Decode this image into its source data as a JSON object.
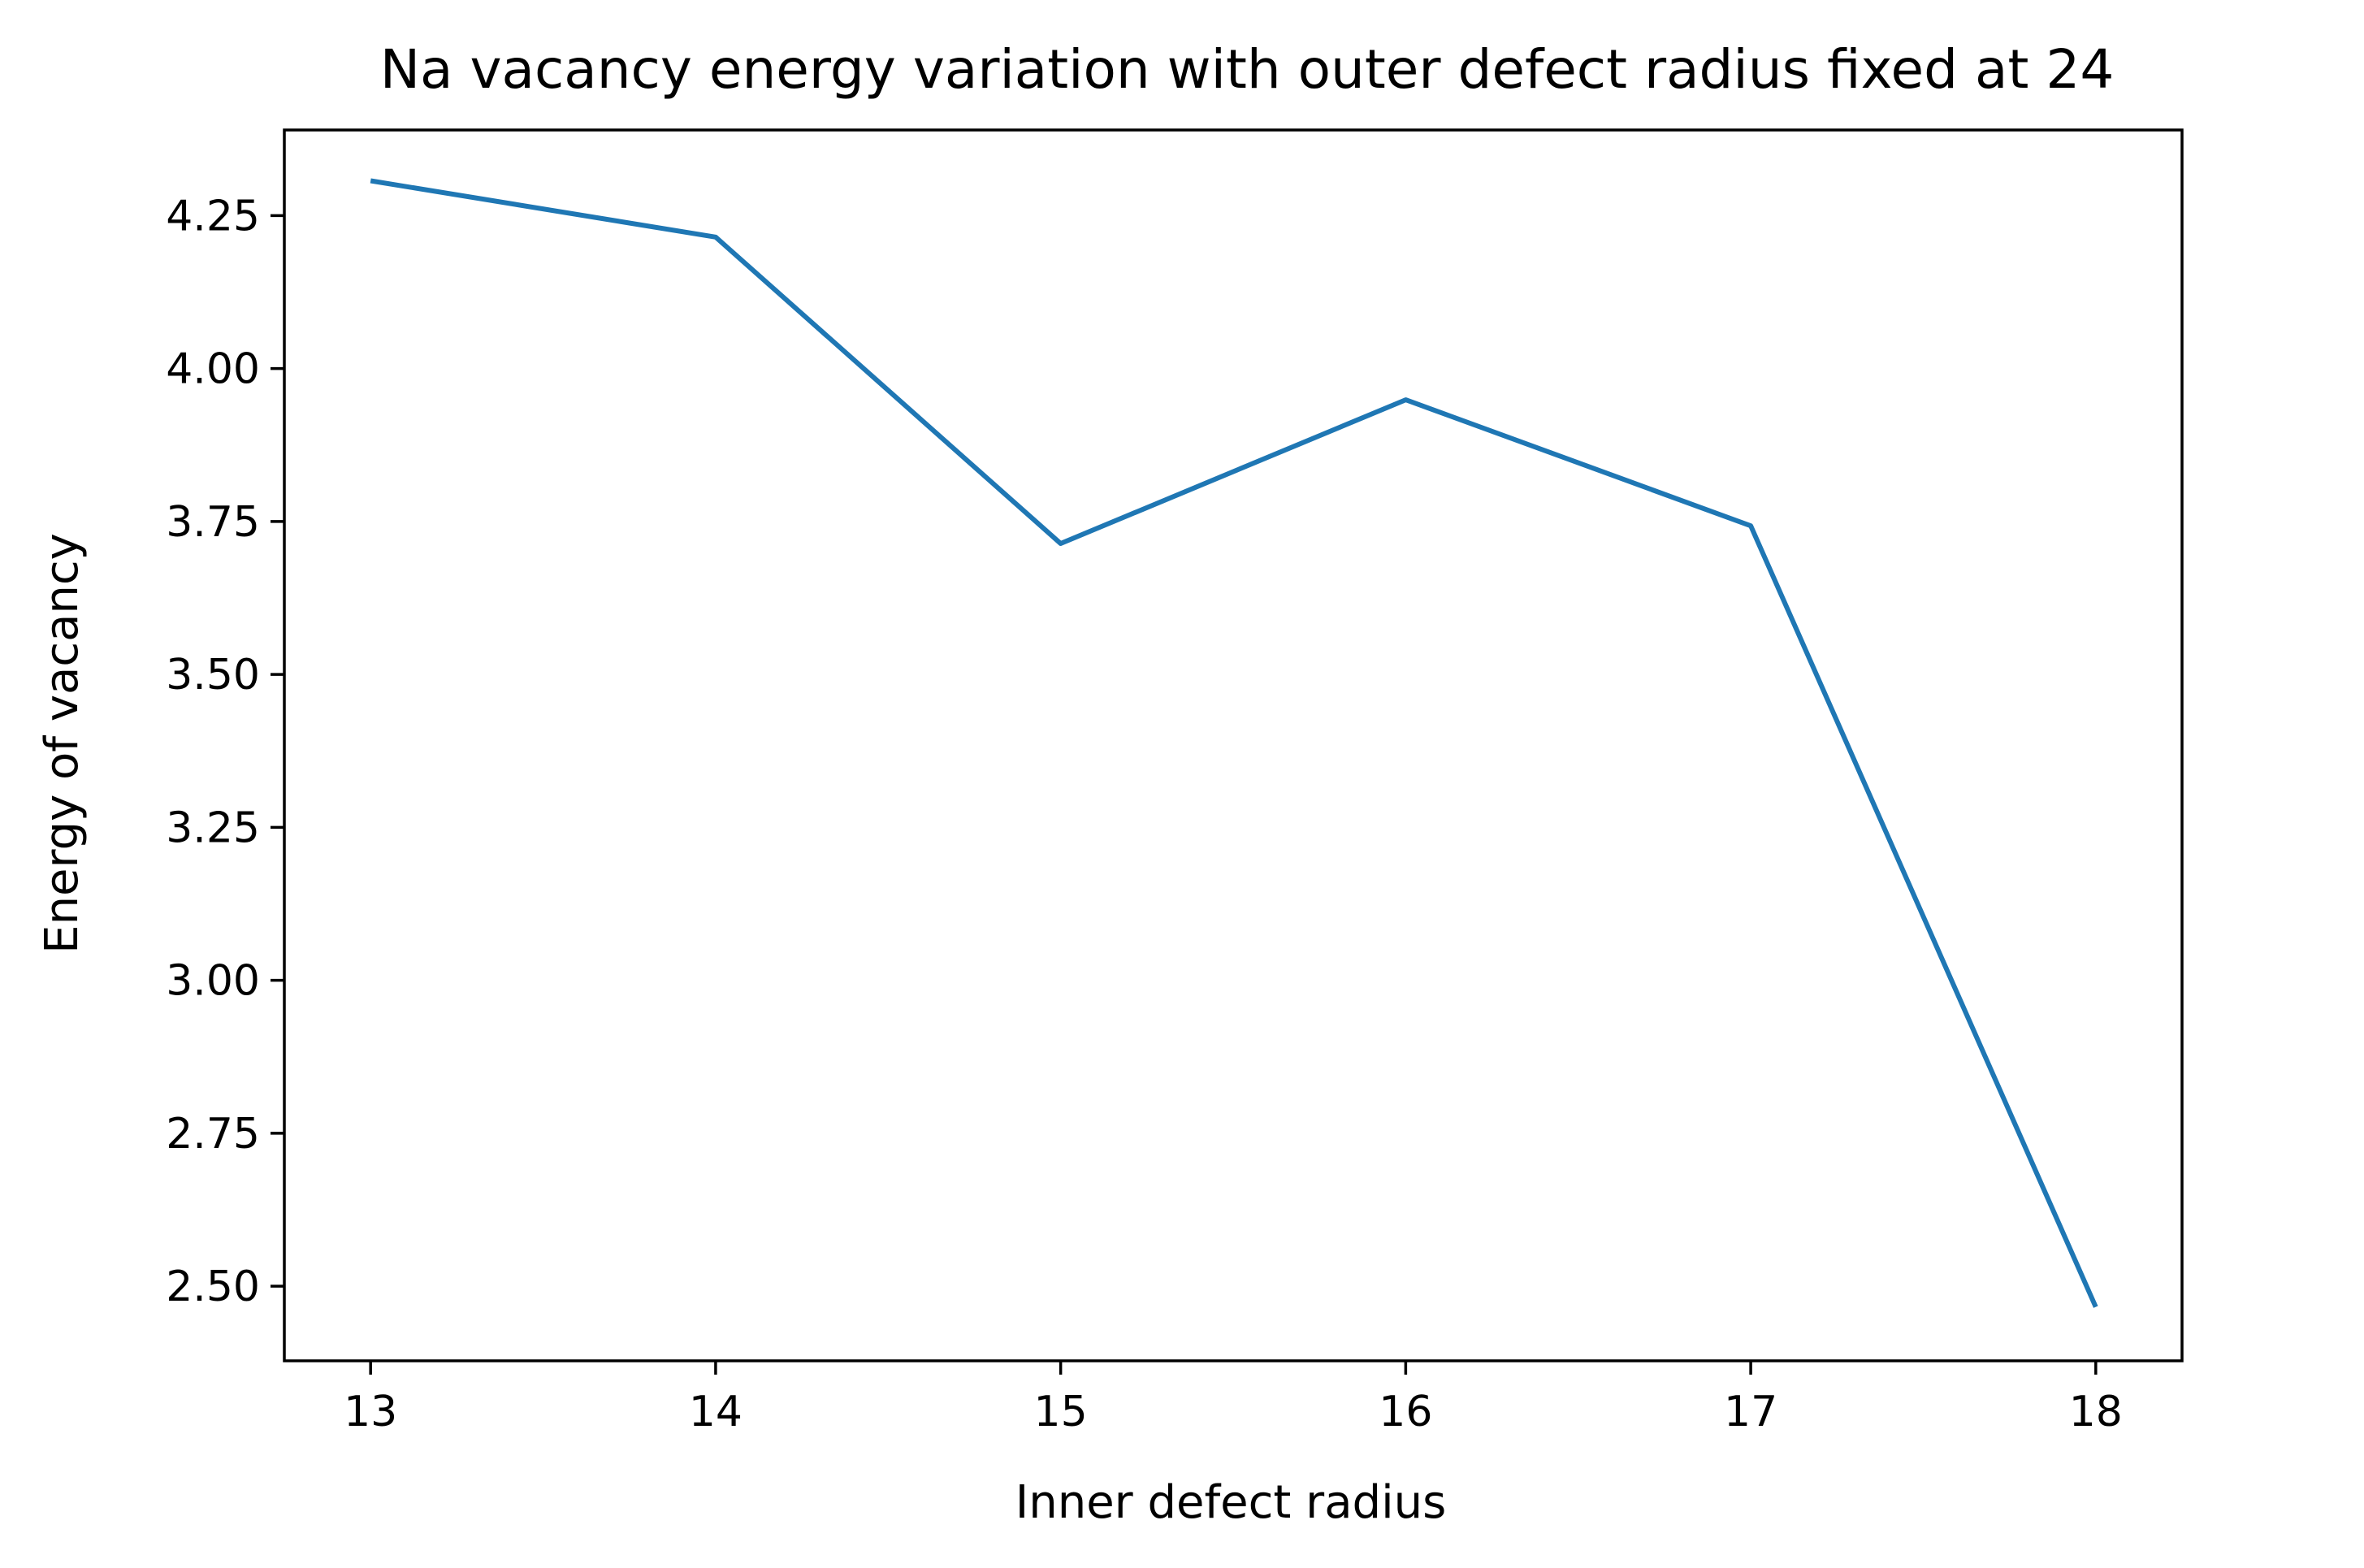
{
  "chart_data": {
    "type": "line",
    "title": "Na vacancy energy variation with outer defect radius fixed at 24",
    "xlabel": "Inner defect radius",
    "ylabel": "Energy of vacancy",
    "x": [
      13,
      14,
      15,
      16,
      17,
      18
    ],
    "xticks": [
      13,
      14,
      15,
      16,
      17,
      18
    ],
    "xtick_labels": [
      "13",
      "14",
      "15",
      "16",
      "17",
      "18"
    ],
    "xlim": [
      12.75,
      18.25
    ],
    "ylim": [
      2.378,
      4.39
    ],
    "yticks": [
      2.5,
      2.75,
      3.0,
      3.25,
      3.5,
      3.75,
      4.0,
      4.25
    ],
    "ytick_labels": [
      "2.50",
      "2.75",
      "3.00",
      "3.25",
      "3.50",
      "3.75",
      "4.00",
      "4.25"
    ],
    "series": [
      {
        "values": [
          4.307,
          4.215,
          3.714,
          3.949,
          3.743,
          2.466
        ],
        "color": "#1f77b4"
      }
    ],
    "grid": false,
    "legend": false
  }
}
